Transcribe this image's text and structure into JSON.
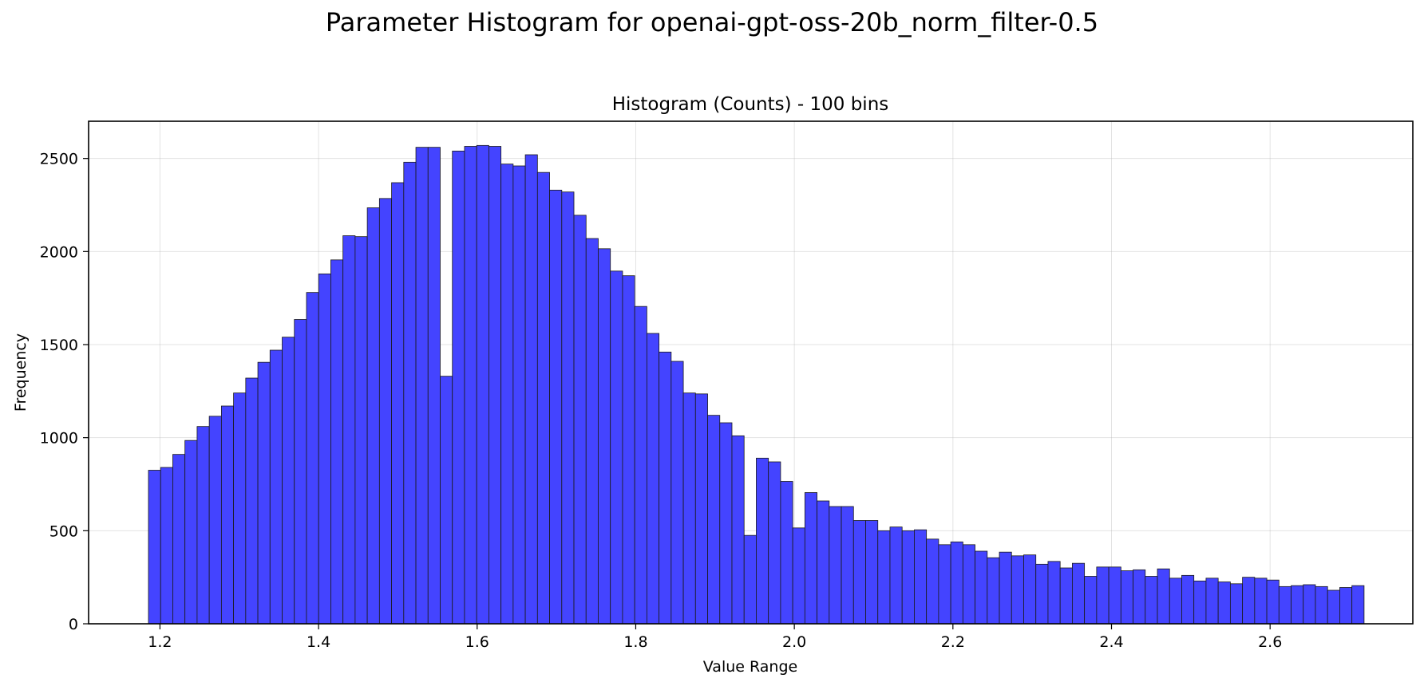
{
  "chart_data": {
    "type": "bar",
    "title": "Parameter Histogram for openai-gpt-oss-20b_norm_filter-0.5",
    "subtitle": "Histogram (Counts) - 100 bins",
    "xlabel": "Value Range",
    "ylabel": "Frequency",
    "bar_color": "#4444ff",
    "edge_color": "#1a1a1a",
    "grid": true,
    "xlim": [
      1.11,
      2.78
    ],
    "ylim": [
      0,
      2700
    ],
    "xticks": [
      1.2,
      1.4,
      1.6,
      1.8,
      2.0,
      2.2,
      2.4,
      2.6
    ],
    "xtick_labels": [
      "1.2",
      "1.4",
      "1.6",
      "1.8",
      "2.0",
      "2.2",
      "2.4",
      "2.6"
    ],
    "yticks": [
      0,
      500,
      1000,
      1500,
      2000,
      2500
    ],
    "ytick_labels": [
      "0",
      "500",
      "1000",
      "1500",
      "2000",
      "2500"
    ],
    "bin_start": 1.1855,
    "bin_end": 2.7185,
    "values": [
      825,
      840,
      910,
      985,
      1060,
      1115,
      1170,
      1240,
      1320,
      1405,
      1470,
      1540,
      1635,
      1780,
      1880,
      1955,
      2085,
      2080,
      2235,
      2285,
      2370,
      2480,
      2560,
      2560,
      1330,
      2540,
      2565,
      2570,
      2565,
      2470,
      2460,
      2520,
      2425,
      2330,
      2320,
      2195,
      2070,
      2015,
      1895,
      1870,
      1705,
      1560,
      1460,
      1410,
      1240,
      1235,
      1120,
      1080,
      1010,
      475,
      890,
      870,
      765,
      515,
      705,
      660,
      630,
      630,
      555,
      555,
      500,
      520,
      500,
      505,
      455,
      425,
      440,
      425,
      390,
      355,
      385,
      365,
      370,
      320,
      335,
      300,
      325,
      255,
      305,
      305,
      285,
      290,
      255,
      295,
      245,
      260,
      230,
      245,
      225,
      215,
      250,
      245,
      235,
      200,
      205,
      210,
      200,
      180,
      195,
      205
    ]
  }
}
